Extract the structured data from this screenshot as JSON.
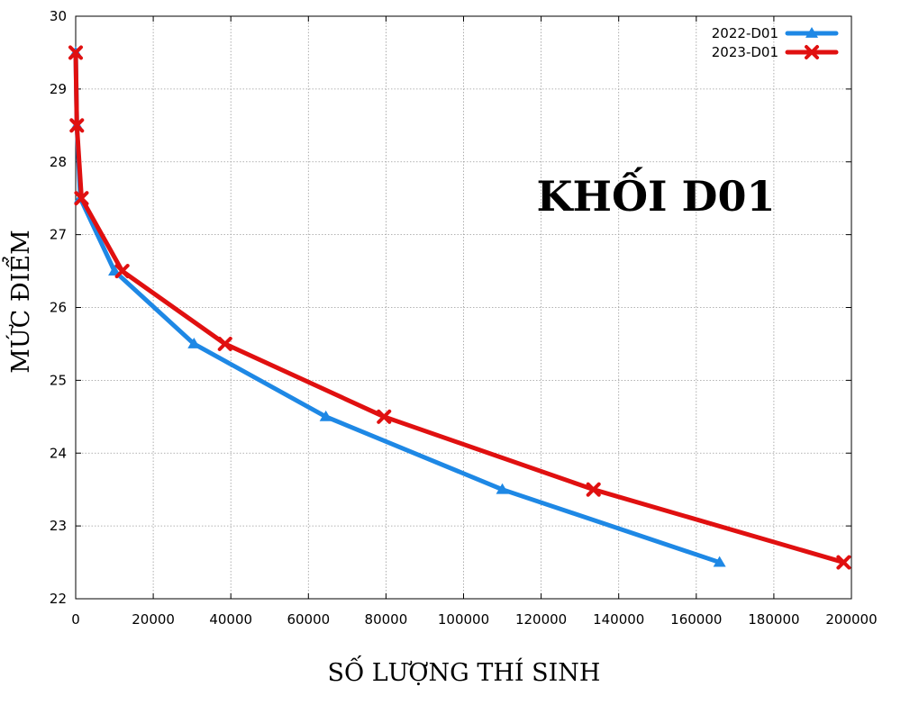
{
  "chart_data": {
    "type": "line",
    "title": "KHỐI D01",
    "xlabel": "SỐ LƯỢNG THÍ SINH",
    "ylabel": "MỨC ĐIỂM",
    "xlim": [
      0,
      200000
    ],
    "ylim": [
      22,
      30
    ],
    "x_ticks": [
      0,
      20000,
      40000,
      60000,
      80000,
      100000,
      120000,
      140000,
      160000,
      180000,
      200000
    ],
    "x_tick_labels": [
      "0",
      "20000",
      "40000",
      "60000",
      "80000",
      "100000",
      "120000",
      "140000",
      "160000",
      "180000",
      "200000"
    ],
    "y_ticks": [
      22,
      23,
      24,
      25,
      26,
      27,
      28,
      29,
      30
    ],
    "y_tick_labels": [
      "22",
      "23",
      "24",
      "25",
      "26",
      "27",
      "28",
      "29",
      "30"
    ],
    "grid": true,
    "legend_position": "top-right",
    "series": [
      {
        "name": "2022-D01",
        "color": "#1e88e5",
        "marker": "triangle",
        "points": [
          {
            "x": 0,
            "y": 29.5
          },
          {
            "x": 300,
            "y": 28.5
          },
          {
            "x": 1200,
            "y": 27.5
          },
          {
            "x": 10000,
            "y": 26.5
          },
          {
            "x": 30500,
            "y": 25.5
          },
          {
            "x": 64500,
            "y": 24.5
          },
          {
            "x": 110000,
            "y": 23.5
          },
          {
            "x": 166000,
            "y": 22.5
          }
        ]
      },
      {
        "name": "2023-D01",
        "color": "#e01010",
        "marker": "x",
        "points": [
          {
            "x": 0,
            "y": 29.5
          },
          {
            "x": 300,
            "y": 28.5
          },
          {
            "x": 1500,
            "y": 27.5
          },
          {
            "x": 12000,
            "y": 26.5
          },
          {
            "x": 38500,
            "y": 25.5
          },
          {
            "x": 79500,
            "y": 24.5
          },
          {
            "x": 133500,
            "y": 23.5
          },
          {
            "x": 198000,
            "y": 22.5
          }
        ]
      }
    ]
  }
}
